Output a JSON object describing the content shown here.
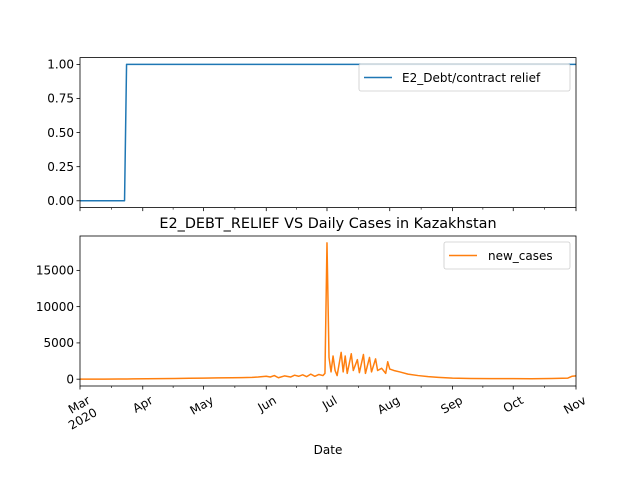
{
  "chart_data": [
    {
      "type": "line",
      "title": "",
      "xlabel": "",
      "ylabel": "",
      "ylim": [
        -0.05,
        1.05
      ],
      "yticks": [
        0.0,
        0.25,
        0.5,
        0.75,
        1.0
      ],
      "ytick_labels": [
        "0.00",
        "0.25",
        "0.50",
        "0.75",
        "1.00"
      ],
      "legend": "top-right",
      "series": [
        {
          "name": "E2_Debt/contract relief",
          "color": "#1f77b4",
          "x": [
            "2020-03-01",
            "2020-03-23",
            "2020-03-24",
            "2020-11-01"
          ],
          "values": [
            0,
            0,
            1,
            1
          ]
        }
      ]
    },
    {
      "type": "line",
      "title": "E2_DEBT_RELIEF VS Daily Cases in Kazakhstan",
      "xlabel": "Date",
      "ylabel": "",
      "ylim": [
        -940,
        19740
      ],
      "yticks": [
        0,
        5000,
        10000,
        15000
      ],
      "ytick_labels": [
        "0",
        "5000",
        "10000",
        "15000"
      ],
      "xticks": [
        "2020-03-01",
        "2020-04-01",
        "2020-05-01",
        "2020-06-01",
        "2020-07-01",
        "2020-08-01",
        "2020-09-01",
        "2020-10-01",
        "2020-11-01"
      ],
      "xtick_labels": [
        "Mar\n2020",
        "Apr",
        "May",
        "Jun",
        "Jul",
        "Aug",
        "Sep",
        "Oct",
        "Nov"
      ],
      "legend": "top-right",
      "series": [
        {
          "name": "new_cases",
          "color": "#ff7f0e",
          "x": [
            "2020-03-01",
            "2020-03-13",
            "2020-03-20",
            "2020-03-27",
            "2020-04-03",
            "2020-04-10",
            "2020-04-17",
            "2020-04-24",
            "2020-05-01",
            "2020-05-08",
            "2020-05-15",
            "2020-05-20",
            "2020-05-25",
            "2020-05-28",
            "2020-05-30",
            "2020-06-01",
            "2020-06-03",
            "2020-06-05",
            "2020-06-07",
            "2020-06-10",
            "2020-06-13",
            "2020-06-15",
            "2020-06-17",
            "2020-06-19",
            "2020-06-21",
            "2020-06-23",
            "2020-06-25",
            "2020-06-27",
            "2020-06-29",
            "2020-06-30",
            "2020-07-01",
            "2020-07-02",
            "2020-07-03",
            "2020-07-04",
            "2020-07-05",
            "2020-07-06",
            "2020-07-08",
            "2020-07-09",
            "2020-07-10",
            "2020-07-11",
            "2020-07-13",
            "2020-07-14",
            "2020-07-16",
            "2020-07-17",
            "2020-07-19",
            "2020-07-20",
            "2020-07-22",
            "2020-07-23",
            "2020-07-25",
            "2020-07-26",
            "2020-07-28",
            "2020-07-30",
            "2020-07-31",
            "2020-08-01",
            "2020-08-03",
            "2020-08-06",
            "2020-08-10",
            "2020-08-15",
            "2020-08-20",
            "2020-08-25",
            "2020-09-01",
            "2020-09-10",
            "2020-09-20",
            "2020-10-01",
            "2020-10-10",
            "2020-10-20",
            "2020-10-28",
            "2020-10-30",
            "2020-11-01"
          ],
          "values": [
            0,
            0,
            20,
            40,
            60,
            80,
            100,
            120,
            150,
            180,
            200,
            220,
            250,
            300,
            350,
            400,
            300,
            500,
            200,
            450,
            300,
            550,
            400,
            600,
            350,
            700,
            400,
            650,
            500,
            800,
            18800,
            3000,
            1000,
            3200,
            1200,
            500,
            3700,
            1000,
            3200,
            800,
            3500,
            1200,
            2700,
            900,
            3400,
            800,
            3000,
            1000,
            2800,
            1200,
            1500,
            800,
            2400,
            1400,
            1200,
            1000,
            700,
            500,
            350,
            250,
            150,
            100,
            80,
            70,
            60,
            100,
            150,
            400,
            450
          ]
        }
      ]
    }
  ]
}
